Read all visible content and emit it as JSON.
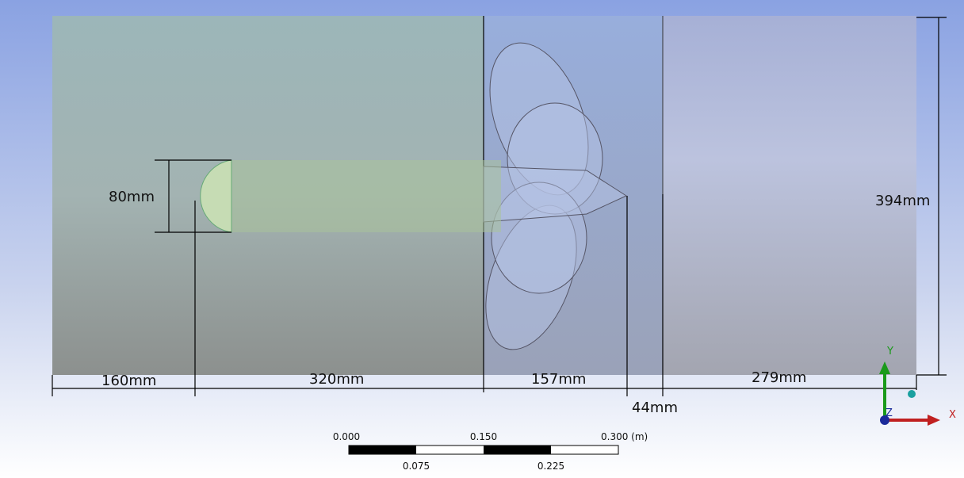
{
  "dimensions": {
    "body_diameter": "80mm",
    "inlet_length": "160mm",
    "body_length": "320mm",
    "propeller_length": "157mm",
    "propeller_gap": "44mm",
    "outlet_length": "279mm",
    "domain_height": "394mm"
  },
  "scale_bar": {
    "start": "0.000",
    "middle": "0.150",
    "end": "0.300 (m)",
    "quarter": "0.075",
    "three_quarter": "0.225"
  },
  "triad": {
    "x": "X",
    "y": "Y",
    "z": "Z"
  }
}
